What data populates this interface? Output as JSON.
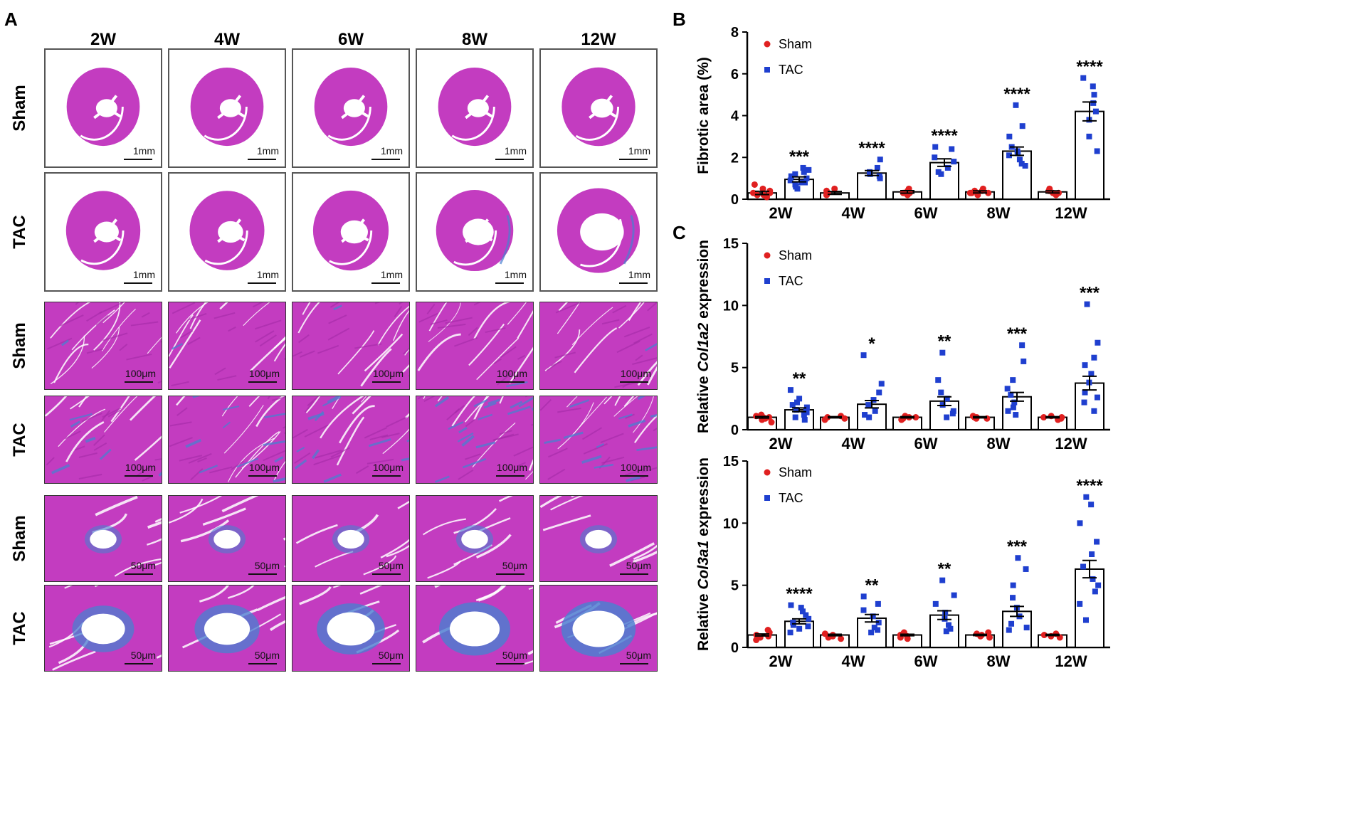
{
  "panels": {
    "a": "A",
    "b": "B",
    "c": "C"
  },
  "histology": {
    "columns": [
      "2W",
      "4W",
      "6W",
      "8W",
      "12W"
    ],
    "rows": [
      {
        "label": "Sham",
        "kind": "whole",
        "fibrosis": [
          0.02,
          0.02,
          0.02,
          0.02,
          0.03
        ],
        "scale": "1mm"
      },
      {
        "label": "TAC",
        "kind": "whole",
        "fibrosis": [
          0.05,
          0.06,
          0.08,
          0.12,
          0.25
        ],
        "scale": "1mm"
      },
      {
        "label": "Sham",
        "kind": "tissue",
        "fibrosis": [
          0.02,
          0.02,
          0.02,
          0.02,
          0.02
        ],
        "scale": "100μm"
      },
      {
        "label": "TAC",
        "kind": "tissue",
        "fibrosis": [
          0.15,
          0.25,
          0.3,
          0.4,
          0.3
        ],
        "scale": "100μm"
      },
      {
        "label": "Sham",
        "kind": "vessel",
        "fibrosis": [
          0.1,
          0.1,
          0.1,
          0.1,
          0.1
        ],
        "scale": "50μm"
      },
      {
        "label": "TAC",
        "kind": "vessel",
        "fibrosis": [
          0.5,
          0.55,
          0.6,
          0.65,
          0.7
        ],
        "scale": "50μm"
      }
    ],
    "colors": {
      "tissue": "#c33cc0",
      "tissue_dark": "#a42aa6",
      "collagen": "#4a7fd0",
      "background": "#ffffff"
    }
  },
  "legend": {
    "sham": "Sham",
    "tac": "TAC"
  },
  "chart_data": [
    {
      "type": "bar",
      "panel": "B",
      "categories": [
        "2W",
        "4W",
        "6W",
        "8W",
        "12W"
      ],
      "ylabel": "Fibrotic area (%)",
      "ylim": [
        0,
        8
      ],
      "yticks": [
        0,
        2,
        4,
        6,
        8
      ],
      "series": [
        {
          "name": "Sham",
          "color": "#e02020",
          "values": [
            0.3,
            0.3,
            0.35,
            0.35,
            0.35
          ],
          "sem": [
            0.08,
            0.07,
            0.06,
            0.05,
            0.05
          ],
          "points": [
            [
              0.1,
              0.2,
              0.3,
              0.5,
              0.7,
              0.4,
              0.2,
              0.3
            ],
            [
              0.2,
              0.3,
              0.4,
              0.5,
              0.3,
              0.2
            ],
            [
              0.2,
              0.3,
              0.5,
              0.4,
              0.3,
              0.3
            ],
            [
              0.2,
              0.3,
              0.4,
              0.5,
              0.3,
              0.4,
              0.3
            ],
            [
              0.2,
              0.3,
              0.4,
              0.5,
              0.4,
              0.3
            ]
          ]
        },
        {
          "name": "TAC",
          "color": "#1f3fcf",
          "values": [
            0.95,
            1.25,
            1.75,
            2.3,
            4.2
          ],
          "sem": [
            0.12,
            0.12,
            0.18,
            0.2,
            0.45
          ],
          "points": [
            [
              0.5,
              0.7,
              0.8,
              1.0,
              1.1,
              1.3,
              1.5,
              0.9,
              0.6,
              1.2,
              0.8,
              1.4
            ],
            [
              1.0,
              1.1,
              1.3,
              1.5,
              1.9,
              1.2
            ],
            [
              1.3,
              1.5,
              1.8,
              2.0,
              2.4,
              2.5,
              1.2
            ],
            [
              1.7,
              1.9,
              2.1,
              2.3,
              2.5,
              3.0,
              3.5,
              4.5,
              2.2,
              1.6
            ],
            [
              2.3,
              3.0,
              4.2,
              4.6,
              5.0,
              5.4,
              5.8,
              3.8
            ]
          ]
        }
      ],
      "significance": [
        "***",
        "****",
        "****",
        "****",
        "****"
      ]
    },
    {
      "type": "bar",
      "panel": "C",
      "categories": [
        "2W",
        "4W",
        "6W",
        "8W",
        "12W"
      ],
      "ylabel_prefix": "Relative ",
      "ylabel_gene": "Col1a2",
      "ylabel_suffix": " expression",
      "ylim": [
        0,
        15
      ],
      "yticks": [
        0,
        5,
        10,
        15
      ],
      "series": [
        {
          "name": "Sham",
          "color": "#e02020",
          "values": [
            1.0,
            1.0,
            1.0,
            1.0,
            1.0
          ],
          "sem": [
            0.06,
            0.05,
            0.05,
            0.05,
            0.05
          ],
          "points": [
            [
              0.6,
              0.8,
              1.0,
              1.1,
              1.2,
              1.0,
              0.9
            ],
            [
              0.8,
              0.9,
              1.0,
              1.1
            ],
            [
              0.8,
              0.9,
              1.0,
              1.1,
              1.0
            ],
            [
              0.9,
              1.0,
              1.1,
              1.0,
              0.9
            ],
            [
              0.8,
              0.9,
              1.0,
              1.1,
              1.0
            ]
          ]
        },
        {
          "name": "TAC",
          "color": "#1f3fcf",
          "values": [
            1.6,
            2.05,
            2.3,
            2.65,
            3.75
          ],
          "sem": [
            0.15,
            0.3,
            0.35,
            0.35,
            0.55
          ],
          "points": [
            [
              0.8,
              1.0,
              1.2,
              1.4,
              1.6,
              1.8,
              2.0,
              2.2,
              2.5,
              3.2,
              1.5
            ],
            [
              1.0,
              1.5,
              2.0,
              2.4,
              3.0,
              3.7,
              6.0,
              1.2
            ],
            [
              1.0,
              1.5,
              2.0,
              2.5,
              3.0,
              4.0,
              6.2,
              1.3
            ],
            [
              1.2,
              1.8,
              2.2,
              2.8,
              3.3,
              4.0,
              5.5,
              6.8,
              1.5
            ],
            [
              1.5,
              2.2,
              3.0,
              3.8,
              4.5,
              5.2,
              5.8,
              7.0,
              10.1,
              2.6
            ]
          ]
        }
      ],
      "significance": [
        "**",
        "*",
        "**",
        "***",
        "***"
      ]
    },
    {
      "type": "bar",
      "panel": "C",
      "categories": [
        "2W",
        "4W",
        "6W",
        "8W",
        "12W"
      ],
      "ylabel_prefix": "Relative ",
      "ylabel_gene": "Col3a1",
      "ylabel_suffix": " expression",
      "ylim": [
        0,
        15
      ],
      "yticks": [
        0,
        5,
        10,
        15
      ],
      "series": [
        {
          "name": "Sham",
          "color": "#e02020",
          "values": [
            1.0,
            1.0,
            1.0,
            1.0,
            1.0
          ],
          "sem": [
            0.08,
            0.06,
            0.06,
            0.05,
            0.05
          ],
          "points": [
            [
              0.6,
              0.8,
              1.0,
              1.2,
              1.4,
              0.9
            ],
            [
              0.7,
              0.9,
              1.0,
              1.1,
              0.8
            ],
            [
              0.7,
              0.9,
              1.0,
              1.2,
              0.8
            ],
            [
              0.8,
              1.0,
              1.1,
              1.2,
              0.9
            ],
            [
              0.8,
              0.9,
              1.0,
              1.1
            ]
          ]
        },
        {
          "name": "TAC",
          "color": "#1f3fcf",
          "values": [
            2.1,
            2.35,
            2.6,
            2.9,
            6.3
          ],
          "sem": [
            0.2,
            0.3,
            0.35,
            0.4,
            0.7
          ],
          "points": [
            [
              1.2,
              1.5,
              1.8,
              2.0,
              2.3,
              2.6,
              2.9,
              3.2,
              3.4,
              1.7
            ],
            [
              1.2,
              1.6,
              2.0,
              2.5,
              3.0,
              3.5,
              4.1,
              1.4
            ],
            [
              1.3,
              1.8,
              2.3,
              2.8,
              3.5,
              4.2,
              5.4,
              1.5
            ],
            [
              1.4,
              1.9,
              2.5,
              3.2,
              4.0,
              5.0,
              6.3,
              7.2,
              1.6
            ],
            [
              2.2,
              3.5,
              4.5,
              5.5,
              6.5,
              7.5,
              8.5,
              10.0,
              11.5,
              12.1,
              5.0
            ]
          ]
        }
      ],
      "significance": [
        "****",
        "**",
        "**",
        "***",
        "****"
      ]
    }
  ]
}
